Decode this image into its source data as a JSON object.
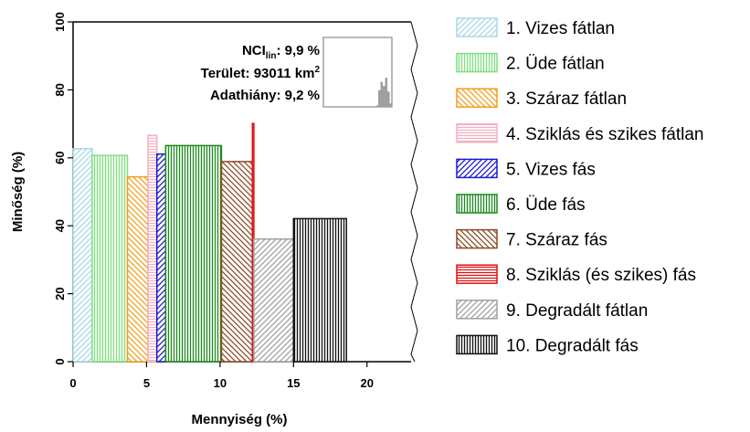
{
  "chart_data": {
    "type": "bar",
    "bar_style": "variable-width (mosaic): x-span = quantity %, height = quality %",
    "xlabel": "Mennyiség (%)",
    "ylabel": "Minőség (%)",
    "xlim": [
      0,
      23
    ],
    "ylim": [
      0,
      100
    ],
    "xticks": [
      0,
      5,
      10,
      15,
      20
    ],
    "yticks": [
      0,
      20,
      40,
      60,
      80,
      100
    ],
    "series": [
      {
        "name": "1. Vizes fátlan",
        "x_start": 0.0,
        "x_end": 1.3,
        "value": 62.7,
        "color": "#a7d8e8",
        "pattern": "diag-right"
      },
      {
        "name": "2. Üde fátlan",
        "x_start": 1.3,
        "x_end": 3.7,
        "value": 60.7,
        "color": "#7ee07e",
        "pattern": "vertical"
      },
      {
        "name": "3. Száraz fátlan",
        "x_start": 3.7,
        "x_end": 5.1,
        "value": 54.4,
        "color": "#f0a020",
        "pattern": "diag-left"
      },
      {
        "name": "4. Sziklás és szikes fátlan",
        "x_start": 5.1,
        "x_end": 5.7,
        "value": 66.6,
        "color": "#f4b0c0",
        "pattern": "horizontal"
      },
      {
        "name": "5. Vizes fás",
        "x_start": 5.7,
        "x_end": 6.3,
        "value": 61.1,
        "color": "#1a1ad0",
        "pattern": "diag-right"
      },
      {
        "name": "6. Üde fás",
        "x_start": 6.3,
        "x_end": 10.1,
        "value": 63.6,
        "color": "#1e8a1e",
        "pattern": "vertical"
      },
      {
        "name": "7. Száraz fás",
        "x_start": 10.1,
        "x_end": 12.2,
        "value": 58.9,
        "color": "#8b4a26",
        "pattern": "diag-left"
      },
      {
        "name": "8. Sziklás (és szikes) fás",
        "x_start": 12.2,
        "x_end": 12.3,
        "value": 70.1,
        "color": "#e01010",
        "pattern": "horizontal"
      },
      {
        "name": "9. Degradált fátlan",
        "x_start": 12.3,
        "x_end": 15.0,
        "value": 36.1,
        "color": "#a0a0a0",
        "pattern": "diag-right"
      },
      {
        "name": "10. Degradált fás",
        "x_start": 15.0,
        "x_end": 18.6,
        "value": 42.1,
        "color": "#111111",
        "pattern": "vertical"
      }
    ],
    "annotations": {
      "nci_label": "NCI",
      "nci_subscript": "lin",
      "nci_value": ": 9,9 %",
      "area_label": "Terület: 93011 km",
      "area_superscript": "2",
      "missing_label": "Adathiány: 9,2 %"
    },
    "inset_histogram": {
      "color": "#a0a0a0",
      "values": [
        0,
        0,
        0,
        0,
        0,
        0,
        0,
        0,
        0,
        0,
        0,
        0,
        0,
        0,
        0,
        0,
        0,
        0,
        0,
        0,
        0,
        0,
        0,
        2,
        24,
        36,
        30,
        42,
        22,
        5
      ]
    },
    "legend_position": "right"
  }
}
